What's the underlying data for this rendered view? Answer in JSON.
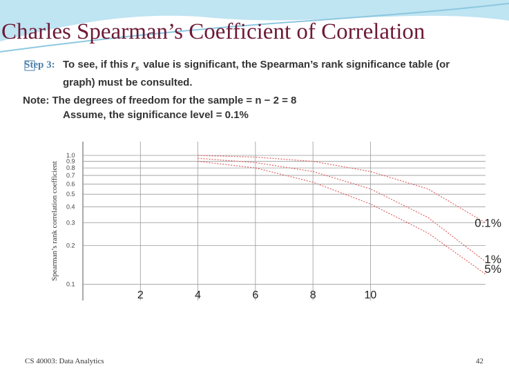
{
  "title": "Charles Spearman’s Coefficient of Correlation",
  "step": {
    "label": "Step 3:",
    "text_before": "To see, if this",
    "symbol": "r",
    "subscript": "s",
    "text_after": "value is significant, the Spearman’s rank significance table (or",
    "text_line2": "graph) must be consulted."
  },
  "note": {
    "line1": "Note: The degrees of freedom for the sample = n − 2 = 8",
    "line2": "Assume, the significance level = 0.1%"
  },
  "footer": {
    "course": "CS 40003: Data Analytics",
    "page": "42"
  },
  "chart_data": {
    "type": "line",
    "y_label": "Spearman’s rank correlation coefficient",
    "x": [
      4,
      6,
      8,
      10,
      12,
      14
    ],
    "series": [
      {
        "name": "0.1%",
        "color": "#e06060",
        "values": [
          1.0,
          0.97,
          0.9,
          0.75,
          0.55,
          0.3
        ]
      },
      {
        "name": "1%",
        "color": "#e06060",
        "values": [
          0.95,
          0.88,
          0.75,
          0.55,
          0.33,
          0.15
        ]
      },
      {
        "name": "5%",
        "color": "#e06060",
        "values": [
          0.9,
          0.8,
          0.62,
          0.42,
          0.25,
          0.12
        ]
      }
    ],
    "xlim": [
      0,
      14
    ],
    "xticks": [
      2,
      4,
      6,
      8,
      10
    ],
    "ylim": [
      0.075,
      1.28
    ],
    "log_y": true,
    "yticks": [
      {
        "value": 1,
        "label": "1.0"
      },
      0.9,
      0.8,
      0.7,
      0.6,
      0.5,
      0.4,
      0.3,
      0.2,
      0.1
    ],
    "grid": true
  }
}
